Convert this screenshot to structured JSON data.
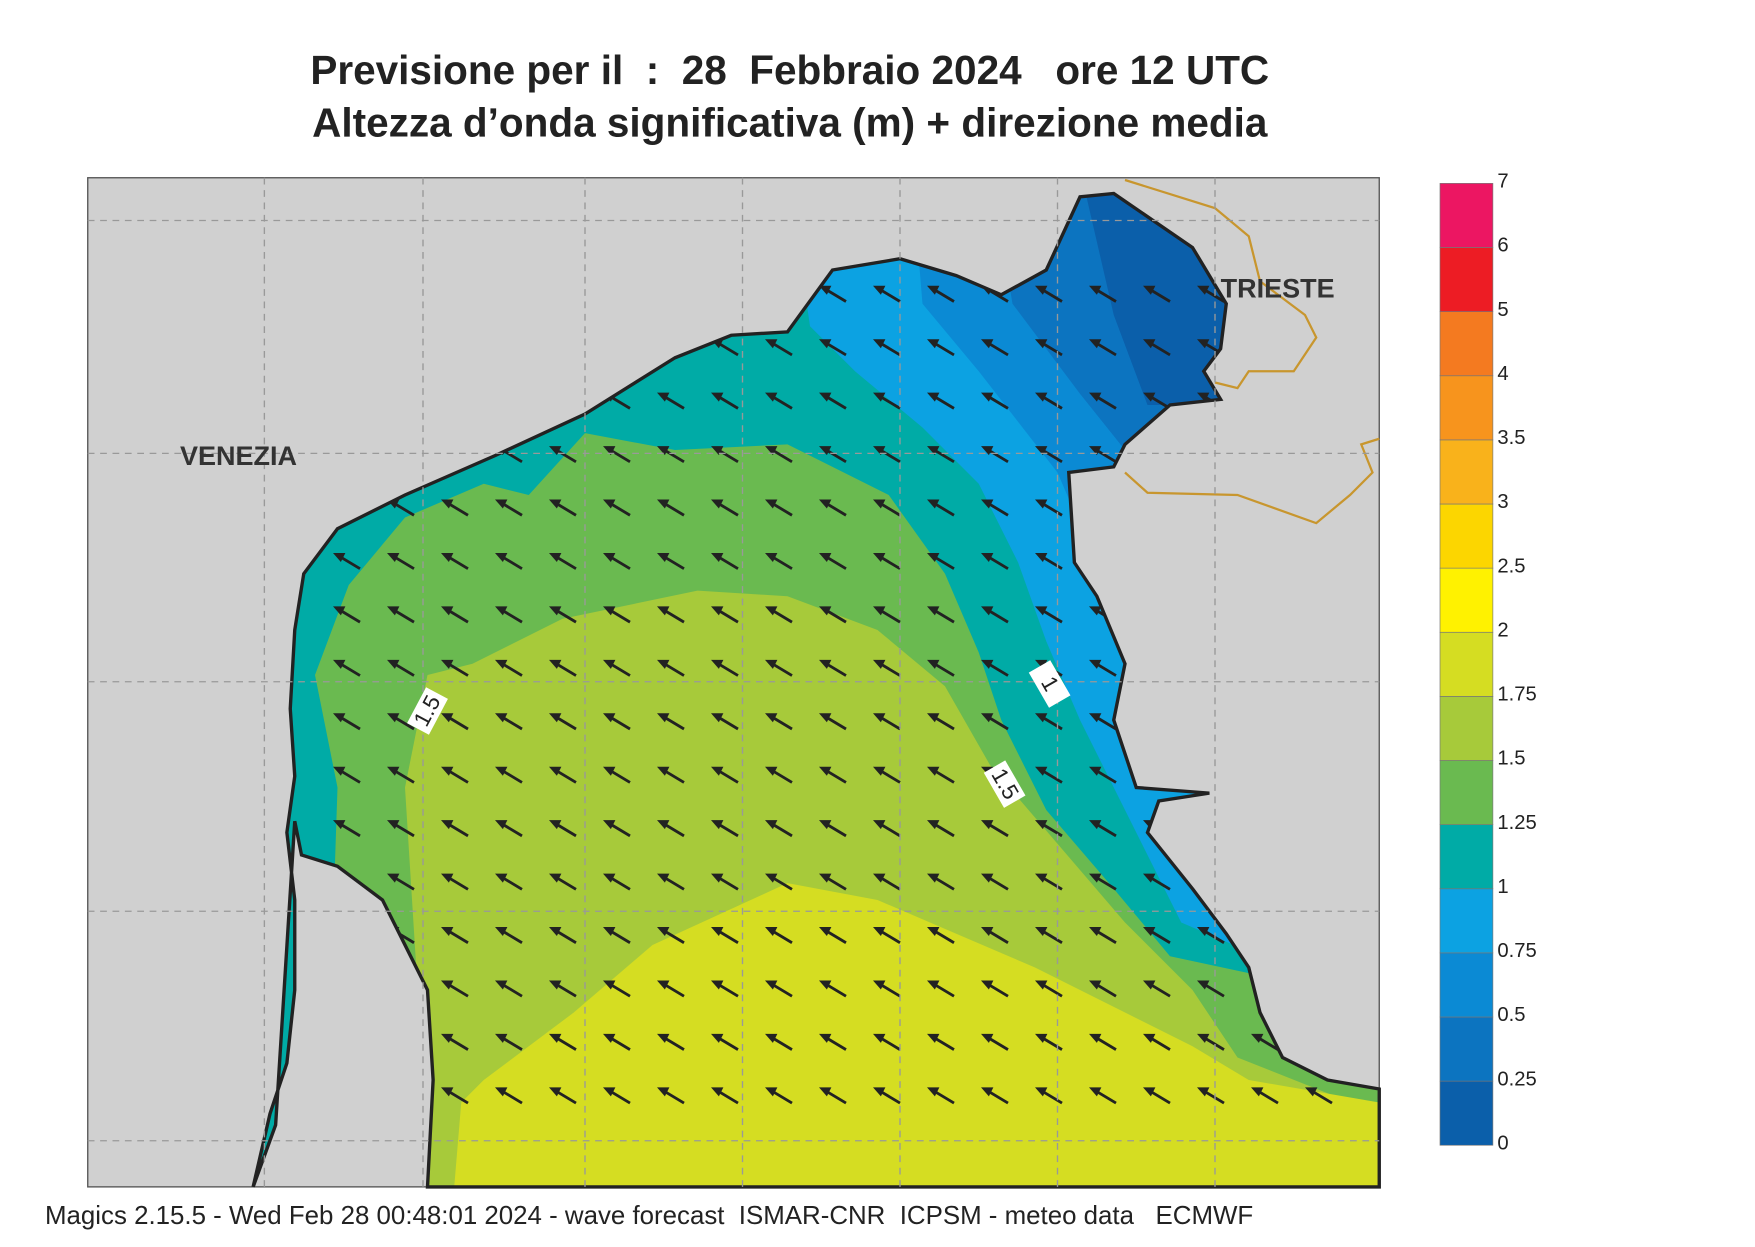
{
  "header": {
    "title": "Previsione per il  :  28  Febbraio 2024   ore 12 UTC",
    "subtitle": "Altezza d’onda significativa (m) + direzione media"
  },
  "map": {
    "place_labels": [
      "VENEZIA",
      "TRIESTE"
    ],
    "contour_labels": [
      1.5,
      1,
      1.5
    ]
  },
  "colorbar": {
    "ticks": [
      0,
      0.25,
      0.5,
      0.75,
      1,
      1.25,
      1.5,
      1.75,
      2,
      2.5,
      3,
      3.5,
      4,
      5,
      6,
      7
    ],
    "colors": [
      "#0b5faa",
      "#0c74c0",
      "#0b8ad4",
      "#0ca2e2",
      "#00aba6",
      "#6aba50",
      "#a7ca3a",
      "#d5dd22",
      "#fff200",
      "#fcd600",
      "#f9b21b",
      "#f7941d",
      "#f47a20",
      "#ed1c24",
      "#ec1662"
    ]
  },
  "footer": "Magics 2.15.5 - Wed Feb 28 00:48:01 2024 - wave forecast  ISMAR-CNR  ICPSM - meteo data   ECMWF"
}
